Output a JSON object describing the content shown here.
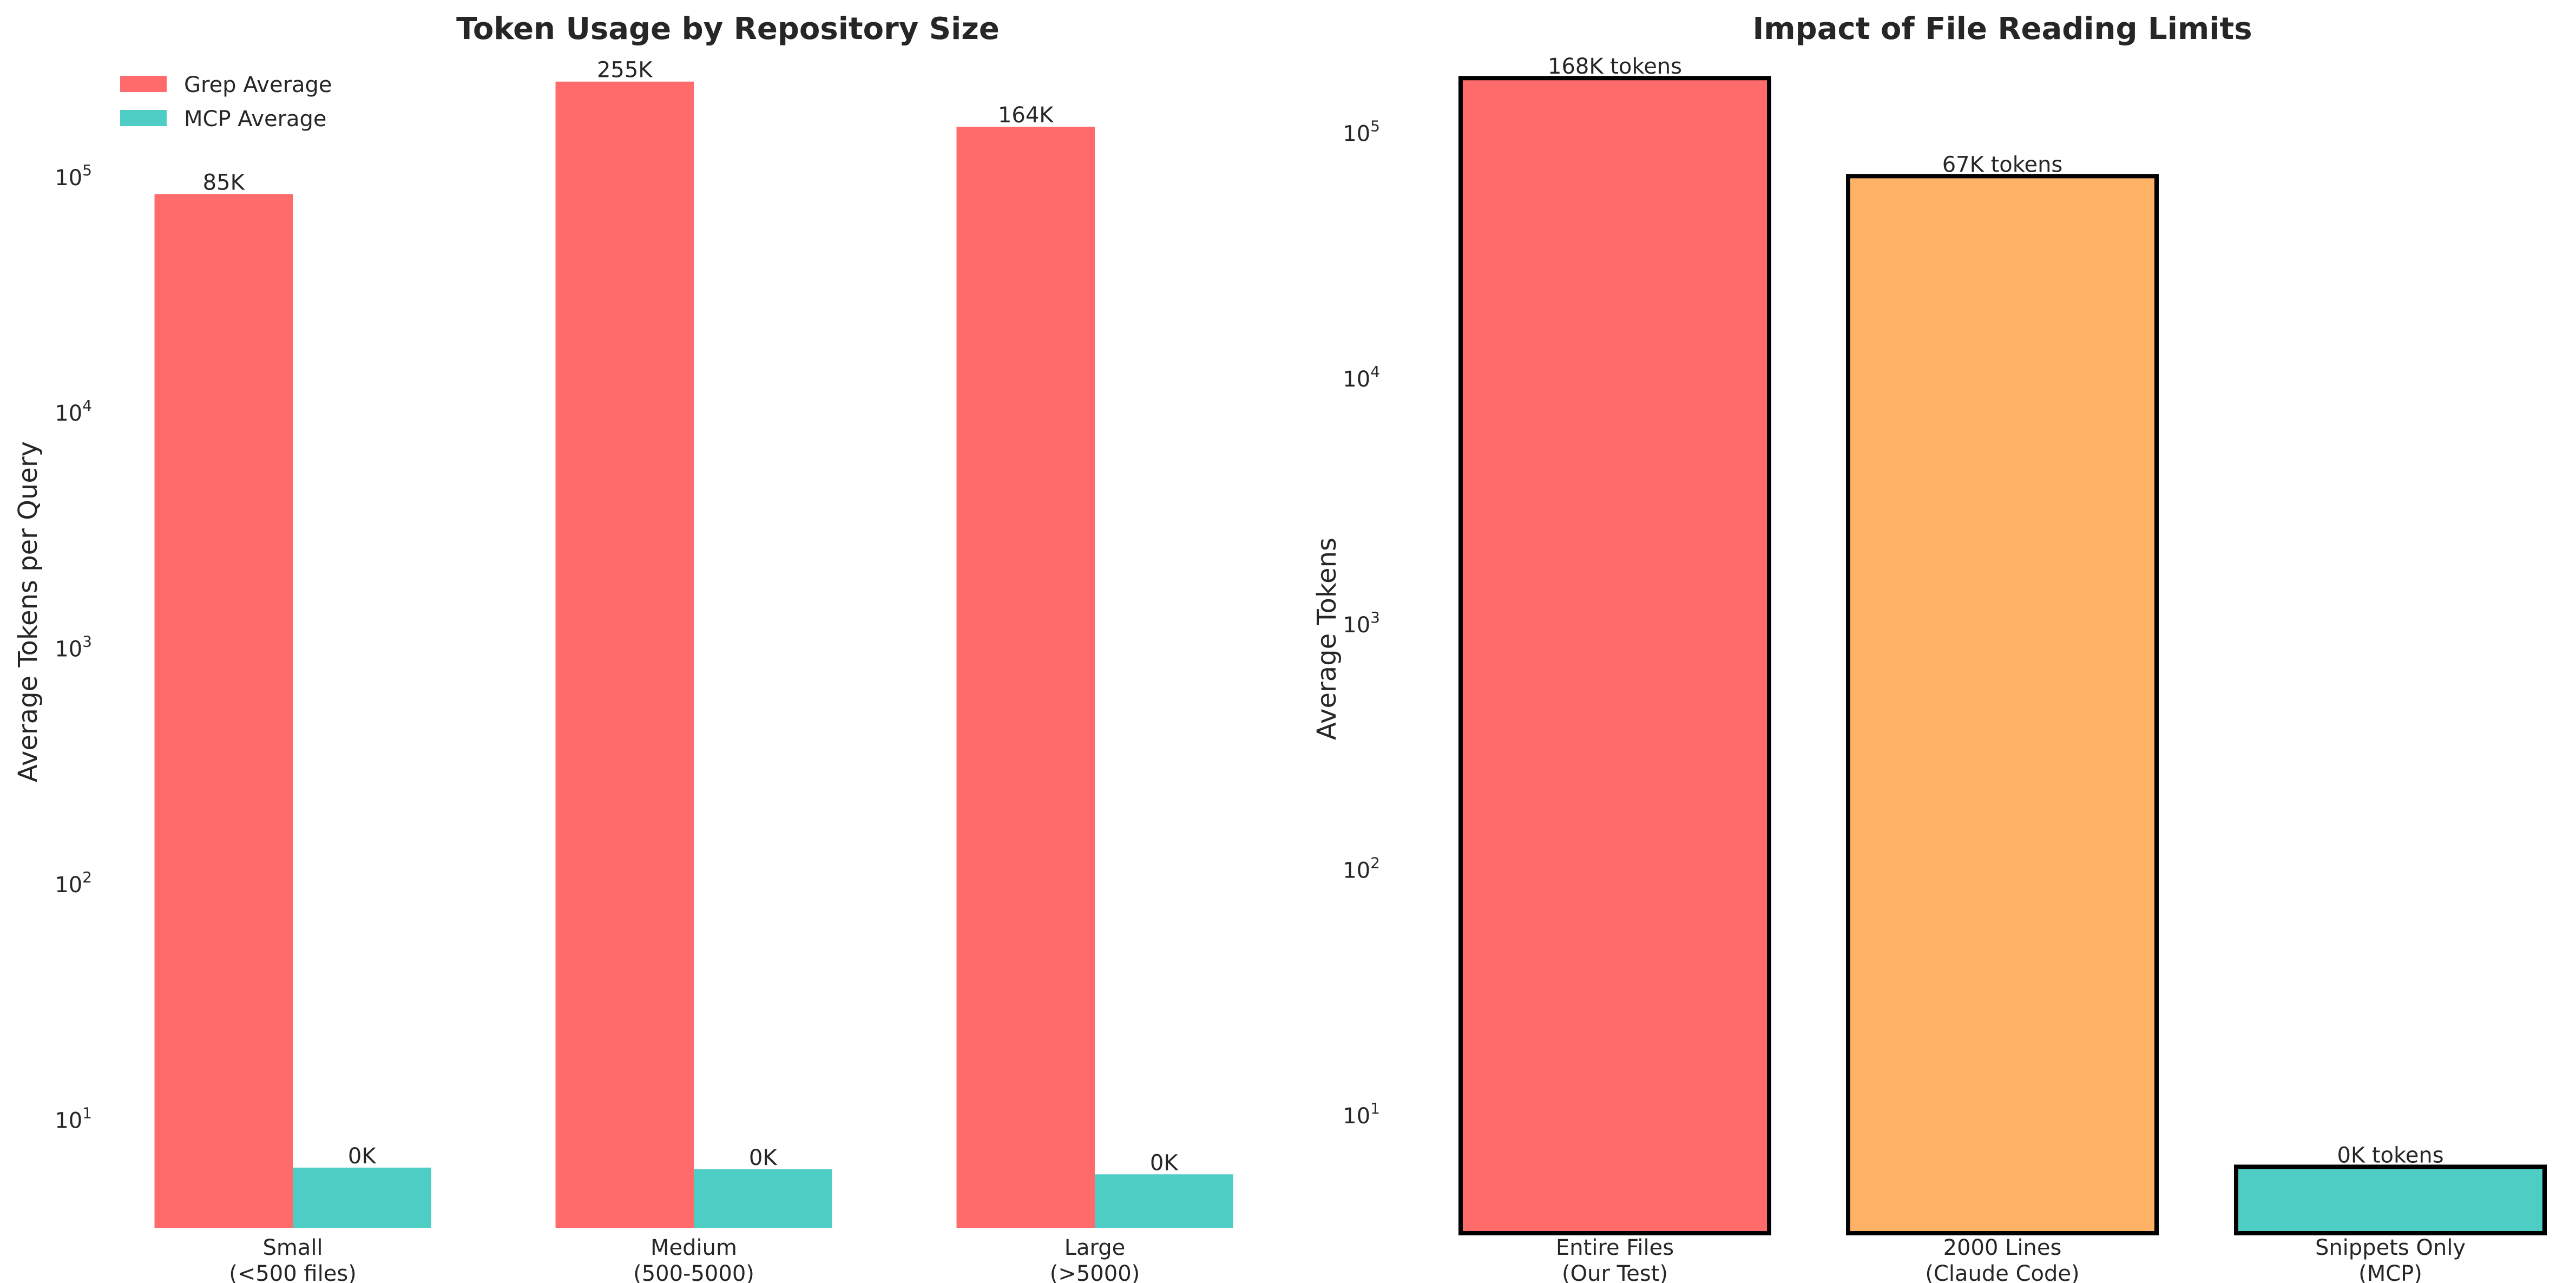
{
  "chart_data": [
    {
      "type": "bar",
      "title": "Token Usage by Repository Size",
      "xlabel": "",
      "ylabel": "Average Tokens per Query",
      "yscale": "log",
      "ylim": [
        3.5,
        300000
      ],
      "y_tick_exponents": [
        1,
        2,
        3,
        4,
        5
      ],
      "categories": [
        [
          "Small",
          "(<500 files)"
        ],
        [
          "Medium",
          "(500-5000)"
        ],
        [
          "Large",
          "(>5000)"
        ]
      ],
      "series": [
        {
          "name": "Grep Average",
          "color": "#FF6B6B",
          "values": [
            85000,
            255000,
            164000
          ],
          "labels": [
            "85K",
            "255K",
            "164K"
          ]
        },
        {
          "name": "MCP Average",
          "color": "#4ECDC4",
          "values": [
            6.3,
            6.2,
            5.9
          ],
          "labels": [
            "0K",
            "0K",
            "0K"
          ]
        }
      ],
      "legend": "top-left",
      "grid": false
    },
    {
      "type": "bar",
      "title": "Impact of File Reading Limits",
      "xlabel": "",
      "ylabel": "Average Tokens",
      "yscale": "log",
      "ylim": [
        3.5,
        190000
      ],
      "y_tick_exponents": [
        1,
        2,
        3,
        4,
        5
      ],
      "categories": [
        [
          "Entire Files",
          "(Our Test)"
        ],
        [
          "2000 Lines",
          "(Claude Code)"
        ],
        [
          "Snippets Only",
          "(MCP)"
        ]
      ],
      "values": [
        168000,
        67000,
        6.2
      ],
      "labels": [
        "168K tokens",
        "67K tokens",
        "0K tokens"
      ],
      "colors": [
        "#FF6B6B",
        "#FFB265",
        "#4ECDC4"
      ],
      "edgecolor": "#000000",
      "grid": false
    }
  ]
}
